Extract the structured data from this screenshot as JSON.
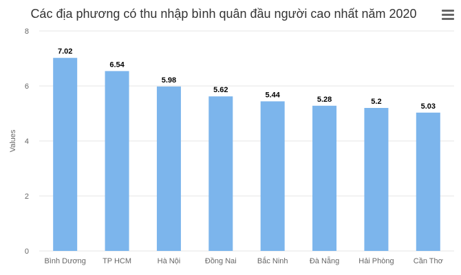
{
  "chart_data": {
    "type": "bar",
    "title": "Các địa phương có thu nhập bình quân đầu người cao nhất năm 2020",
    "ylabel": "Values",
    "xlabel": "",
    "categories": [
      "Bình Dương",
      "TP HCM",
      "Hà Nội",
      "Đồng Nai",
      "Bắc Ninh",
      "Đà Nẵng",
      "Hải Phòng",
      "Cần Thơ"
    ],
    "values": [
      7.02,
      6.54,
      5.98,
      5.62,
      5.44,
      5.28,
      5.2,
      5.03
    ],
    "value_labels": [
      "7.02",
      "6.54",
      "5.98",
      "5.62",
      "5.44",
      "5.28",
      "5.2",
      "5.03"
    ],
    "ylim": [
      0,
      8
    ],
    "yticks": [
      0,
      2,
      4,
      6,
      8
    ],
    "ytick_labels": [
      "0",
      "2",
      "4",
      "6",
      "8"
    ],
    "grid": true,
    "legend": "none",
    "bar_color": "#7cb5ec",
    "grid_color": "#e6e6e6"
  },
  "menu": {
    "icon": "hamburger-menu-icon"
  }
}
